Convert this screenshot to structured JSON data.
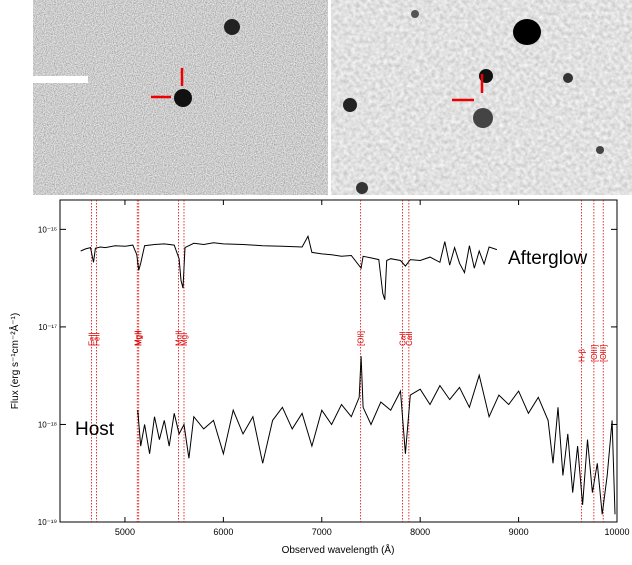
{
  "chart_data": {
    "type": "line",
    "log_y": true,
    "xlabel": "Observed wavelength (Å)",
    "ylabel": "Flux (erg s⁻¹cm⁻²Å⁻¹)",
    "xlim": [
      4340,
      10000
    ],
    "ylim": [
      1e-19,
      2e-16
    ],
    "xticks": [
      5000,
      6000,
      7000,
      8000,
      9000,
      10000
    ],
    "yticks": [
      {
        "value": 1e-19,
        "label": "10⁻¹⁹"
      },
      {
        "value": 1e-18,
        "label": "10⁻¹⁸"
      },
      {
        "value": 1e-17,
        "label": "10⁻¹⁷"
      },
      {
        "value": 1e-16,
        "label": "10⁻¹⁶"
      }
    ],
    "series": [
      {
        "name": "Afterglow",
        "color": "#000000",
        "x": [
          4550,
          4600,
          4650,
          4680,
          4700,
          4750,
          4800,
          4900,
          5000,
          5080,
          5120,
          5140,
          5160,
          5200,
          5300,
          5400,
          5500,
          5550,
          5570,
          5590,
          5610,
          5700,
          5800,
          5900,
          6000,
          6200,
          6400,
          6600,
          6800,
          6860,
          6900,
          7000,
          7100,
          7200,
          7300,
          7400,
          7420,
          7500,
          7580,
          7620,
          7640,
          7660,
          7700,
          7800,
          7850,
          7900,
          8000,
          8100,
          8200,
          8250,
          8300,
          8350,
          8400,
          8450,
          8500,
          8550,
          8600,
          8650,
          8700,
          8780
        ],
        "values": [
          6e-17,
          6.3e-17,
          6.5e-17,
          4.6e-17,
          6.4e-17,
          6.6e-17,
          6.5e-17,
          6.8e-17,
          6.7e-17,
          6.9e-17,
          5.5e-17,
          3.8e-17,
          4.5e-17,
          6.8e-17,
          7e-17,
          7.1e-17,
          6.9e-17,
          5e-17,
          3e-17,
          2.5e-17,
          6.5e-17,
          7.2e-17,
          7e-17,
          7.3e-17,
          7.1e-17,
          7e-17,
          6.8e-17,
          6.7e-17,
          6.6e-17,
          8.5e-17,
          5.8e-17,
          5.6e-17,
          5.5e-17,
          5.3e-17,
          5.4e-17,
          4e-17,
          5.3e-17,
          5.1e-17,
          4.9e-17,
          2.2e-17,
          1.9e-17,
          4.8e-17,
          5e-17,
          4.8e-17,
          4.2e-17,
          4.9e-17,
          4.8e-17,
          5.2e-17,
          4.6e-17,
          7.5e-17,
          4.3e-17,
          6.5e-17,
          4.5e-17,
          3.6e-17,
          6.8e-17,
          4e-17,
          6e-17,
          4.4e-17,
          6.6e-17,
          6.2e-17
        ]
      },
      {
        "name": "Host",
        "color": "#000000",
        "x": [
          5130,
          5160,
          5200,
          5250,
          5300,
          5350,
          5400,
          5450,
          5500,
          5550,
          5600,
          5650,
          5700,
          5800,
          5900,
          6000,
          6100,
          6200,
          6300,
          6400,
          6500,
          6600,
          6700,
          6800,
          6900,
          7000,
          7100,
          7200,
          7300,
          7380,
          7400,
          7420,
          7500,
          7600,
          7700,
          7800,
          7850,
          7900,
          8000,
          8100,
          8200,
          8300,
          8400,
          8500,
          8600,
          8700,
          8800,
          8900,
          9000,
          9100,
          9200,
          9300,
          9350,
          9400,
          9450,
          9500,
          9550,
          9600,
          9650,
          9700,
          9750,
          9800,
          9850,
          9900,
          9950,
          9980
        ],
        "values": [
          1.4e-18,
          6e-19,
          1e-18,
          5e-19,
          1.2e-18,
          7e-19,
          1.1e-18,
          6e-19,
          1.3e-18,
          8e-19,
          1e-18,
          4.5e-19,
          1.2e-18,
          9e-19,
          1.1e-18,
          5e-19,
          1.4e-18,
          8e-19,
          1.2e-18,
          4e-19,
          1.1e-18,
          1.5e-18,
          9e-19,
          1.3e-18,
          6e-19,
          1.4e-18,
          1e-18,
          1.6e-18,
          1.2e-18,
          1.9e-18,
          5e-18,
          1.5e-18,
          1e-18,
          1.7e-18,
          1.4e-18,
          2.2e-18,
          5e-19,
          2e-18,
          2.3e-18,
          1.6e-18,
          2.5e-18,
          1.8e-18,
          2.4e-18,
          1.5e-18,
          3.2e-18,
          1.2e-18,
          2e-18,
          1.6e-18,
          2.2e-18,
          1.3e-18,
          1.9e-18,
          1.1e-18,
          4e-19,
          1.5e-18,
          3e-19,
          8e-19,
          2e-19,
          6e-19,
          1.5e-19,
          7e-19,
          2e-19,
          4e-19,
          1.2e-19,
          3e-19,
          1.1e-18,
          1.2e-19
        ]
      }
    ],
    "line_markers": {
      "color": "#dd0000",
      "items": [
        {
          "label": "FeII",
          "x": 4660
        },
        {
          "label": "FeII",
          "x": 4710
        },
        {
          "label": "MgII",
          "x": 5125
        },
        {
          "label": "MgII",
          "x": 5140
        },
        {
          "label": "MgII",
          "x": 5545
        },
        {
          "label": "MgI",
          "x": 5600
        },
        {
          "label": "[OII]",
          "x": 7395
        },
        {
          "label": "CaII",
          "x": 7820
        },
        {
          "label": "CaII",
          "x": 7885
        },
        {
          "label": "H-β",
          "x": 9640
        },
        {
          "label": "[OIII]",
          "x": 9765
        },
        {
          "label": "[OIII]",
          "x": 9860
        }
      ]
    }
  }
}
